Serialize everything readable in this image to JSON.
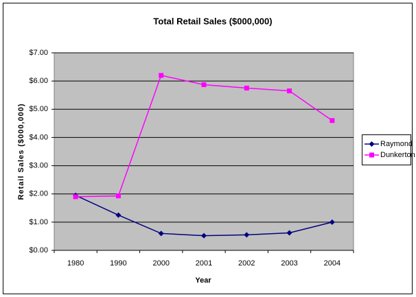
{
  "chart_data": {
    "type": "line",
    "title": "Total Retail Sales ($000,000)",
    "x_label": "Year",
    "y_label": "Retail Sales ($000,000)",
    "categories": [
      "1980",
      "1990",
      "2000",
      "2001",
      "2002",
      "2003",
      "2004"
    ],
    "series": [
      {
        "name": "Raymond",
        "color": "#000080",
        "marker": "diamond",
        "values": [
          1.95,
          1.25,
          0.6,
          0.52,
          0.55,
          0.62,
          1.0
        ]
      },
      {
        "name": "Dunkerton",
        "color": "#ff00ff",
        "marker": "square",
        "values": [
          1.9,
          1.93,
          6.2,
          5.87,
          5.75,
          5.65,
          4.6
        ]
      }
    ],
    "ylim": [
      0,
      7
    ],
    "yticks": [
      {
        "value": 0,
        "label": "$0.00"
      },
      {
        "value": 1,
        "label": "$1.00"
      },
      {
        "value": 2,
        "label": "$2.00"
      },
      {
        "value": 3,
        "label": "$3.00"
      },
      {
        "value": 4,
        "label": "$4.00"
      },
      {
        "value": 5,
        "label": "$5.00"
      },
      {
        "value": 6,
        "label": "$6.00"
      },
      {
        "value": 7,
        "label": "$7.00"
      }
    ],
    "grid": true,
    "legend": "right"
  }
}
